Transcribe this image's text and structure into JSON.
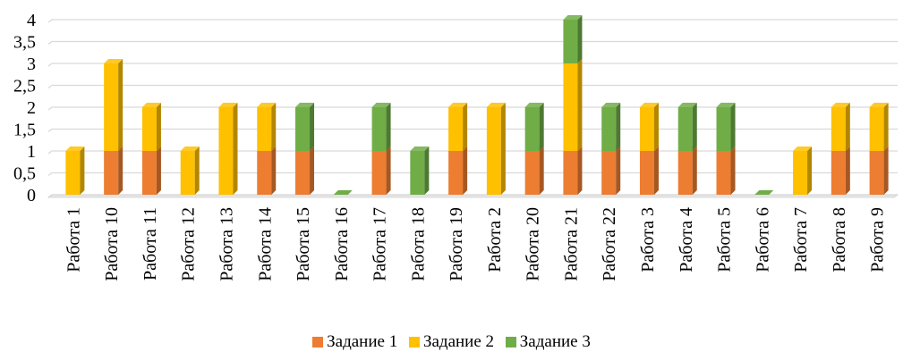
{
  "chart_data": {
    "type": "bar",
    "stacked": true,
    "style": "3d-column",
    "title": "",
    "xlabel": "",
    "ylabel": "",
    "ylim": [
      0,
      4
    ],
    "yticks": [
      "0",
      "0,5",
      "1",
      "1,5",
      "2",
      "2,5",
      "3",
      "3,5",
      "4"
    ],
    "grid": true,
    "legend_position": "bottom",
    "categories": [
      "Работа 1",
      "Работа 10",
      "Работа 11",
      "Работа 12",
      "Работа 13",
      "Работа 14",
      "Работа 15",
      "Работа 16",
      "Работа 17",
      "Работа 18",
      "Работа 19",
      "Работа 2",
      "Работа 20",
      "Работа 21",
      "Работа 22",
      "Работа 3",
      "Работа 4",
      "Работа 5",
      "Работа 6",
      "Работа 7",
      "Работа 8",
      "Работа 9"
    ],
    "series": [
      {
        "name": "Задание 1",
        "color": "#ED7D31",
        "values": [
          0,
          1,
          1,
          0,
          0,
          1,
          1,
          0,
          1,
          0,
          1,
          0,
          1,
          1,
          1,
          1,
          1,
          1,
          0,
          0,
          1,
          1
        ]
      },
      {
        "name": "Задание 2",
        "color": "#FFC000",
        "values": [
          1,
          2,
          1,
          1,
          2,
          1,
          0,
          0,
          0,
          0,
          1,
          2,
          0,
          2,
          0,
          1,
          0,
          0,
          0,
          1,
          1,
          1
        ]
      },
      {
        "name": "Задание 3",
        "color": "#70AD47",
        "values": [
          0,
          0,
          0,
          0,
          0,
          0,
          1,
          0,
          1,
          1,
          0,
          0,
          1,
          1,
          1,
          0,
          1,
          1,
          0,
          0,
          0,
          0
        ]
      }
    ]
  }
}
